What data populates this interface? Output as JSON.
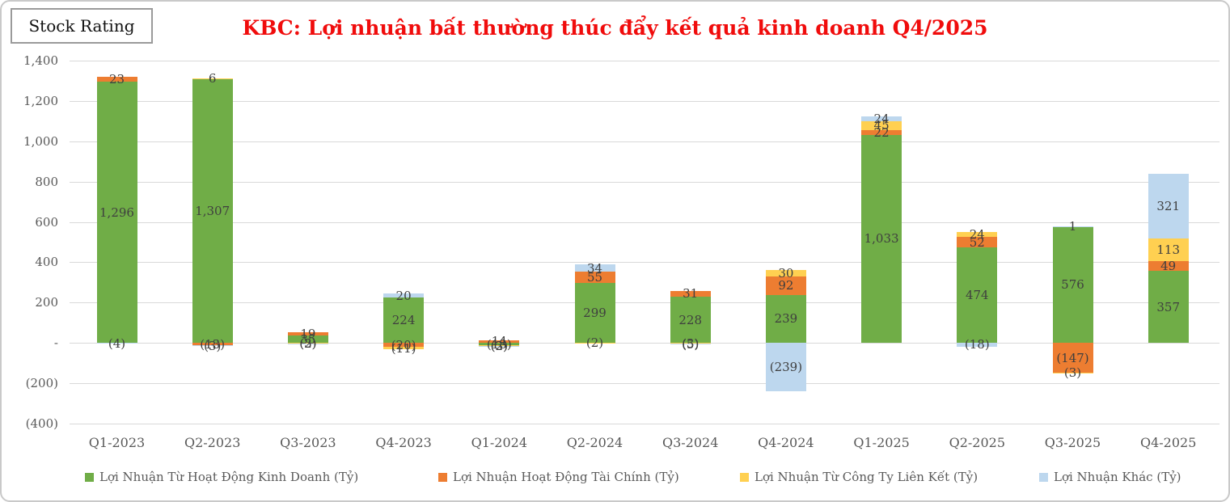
{
  "window": {
    "stock_rating_label": "Stock Rating"
  },
  "title": "KBC: Lợi nhuận bất thường thúc đẩy kết quả kinh doanh Q4/2025",
  "colors": {
    "title_red": "#f00c0c",
    "green": "#70AD47",
    "orange": "#ED7D31",
    "yellow": "#FFD051",
    "light_blue": "#BDD7EE",
    "gridline": "#D9D9D9",
    "axis_text": "#595959",
    "label_text": "#3F3F3F"
  },
  "chart_data": {
    "type": "bar",
    "stacked": true,
    "grid": true,
    "legend_position": "bottom",
    "title": "KBC: Lợi nhuận bất thường thúc đẩy kết quả kinh doanh Q4/2025",
    "xlabel": "",
    "ylabel": "",
    "ylim": [
      -400,
      1400
    ],
    "yticks": [
      {
        "value": -400,
        "label": "(400)"
      },
      {
        "value": -200,
        "label": "(200)"
      },
      {
        "value": 0,
        "label": "-"
      },
      {
        "value": 200,
        "label": "200"
      },
      {
        "value": 400,
        "label": "400"
      },
      {
        "value": 600,
        "label": "600"
      },
      {
        "value": 800,
        "label": "800"
      },
      {
        "value": 1000,
        "label": "1,000"
      },
      {
        "value": 1200,
        "label": "1,200"
      },
      {
        "value": 1400,
        "label": "1,400"
      }
    ],
    "categories": [
      "Q1-2023",
      "Q2-2023",
      "Q3-2023",
      "Q4-2023",
      "Q1-2024",
      "Q2-2024",
      "Q3-2024",
      "Q4-2024",
      "Q1-2025",
      "Q2-2025",
      "Q3-2025",
      "Q4-2025"
    ],
    "series": [
      {
        "name": "Lợi Nhuận Từ Hoạt Động Kinh Doanh (Tỷ)",
        "color": "#70AD47",
        "values": [
          1296,
          1307,
          35,
          224,
          -13,
          299,
          228,
          239,
          1033,
          474,
          576,
          357
        ]
      },
      {
        "name": "Lợi Nhuận Hoạt Động Tài Chính (Tỷ)",
        "color": "#ED7D31",
        "values": [
          23,
          -13,
          19,
          -20,
          14,
          55,
          31,
          92,
          22,
          52,
          -147,
          49
        ]
      },
      {
        "name": "Lợi Nhuận Từ Công Ty Liên Kết (Tỷ)",
        "color": "#FFD051",
        "values": [
          0,
          6,
          -3,
          -11,
          -2,
          -2,
          -3,
          30,
          45,
          24,
          -3,
          113
        ]
      },
      {
        "name": "Lợi Nhuận Khác (Tỷ)",
        "color": "#BDD7EE",
        "values": [
          -4,
          -3,
          -2,
          20,
          -3,
          34,
          -5,
          -239,
          24,
          -18,
          1,
          321
        ]
      }
    ]
  }
}
